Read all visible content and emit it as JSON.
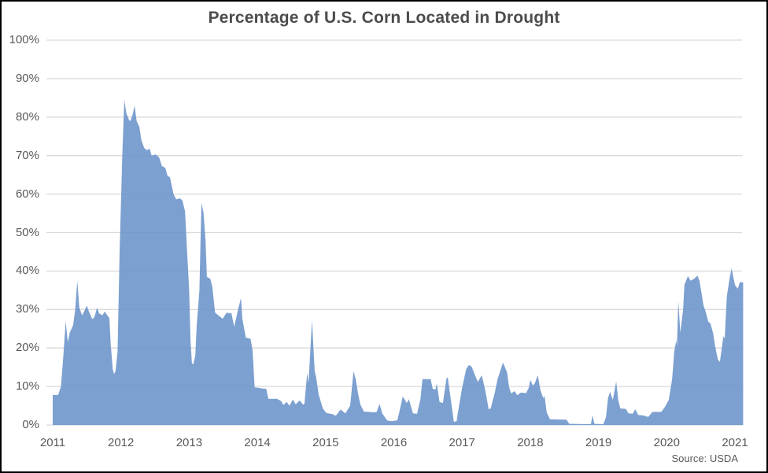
{
  "chart": {
    "title": "Percentage of U.S. Corn Located in Drought",
    "source": "Source: USDA",
    "y_ticks": [
      "0%",
      "10%",
      "20%",
      "30%",
      "40%",
      "50%",
      "60%",
      "70%",
      "80%",
      "90%",
      "100%"
    ],
    "x_ticks": [
      "2011",
      "2012",
      "2013",
      "2014",
      "2015",
      "2016",
      "2017",
      "2018",
      "2019",
      "2020",
      "2021"
    ],
    "colors": {
      "area_fill": "#6A93C9",
      "area_blended": "#7CA0D2",
      "gridline": "#D9D9D9",
      "axis_text": "#595959",
      "title_text": "#4C4C4C",
      "frame_border": "#000000",
      "background": "#FFFFFF"
    }
  },
  "chart_data": {
    "type": "area",
    "title": "Percentage of U.S. Corn Located in Drought",
    "xlabel": "",
    "ylabel": "",
    "series_name": "Percent of U.S. corn located in drought",
    "x_range": [
      2011,
      2021.12
    ],
    "ylim": [
      0,
      100
    ],
    "y_tick_step": 10,
    "grid": true,
    "legend": false,
    "source": "Source: USDA",
    "points": [
      [
        2011.0,
        7.8
      ],
      [
        2011.08,
        7.8
      ],
      [
        2011.12,
        10
      ],
      [
        2011.15,
        16.5
      ],
      [
        2011.19,
        27
      ],
      [
        2011.22,
        21.5
      ],
      [
        2011.25,
        24
      ],
      [
        2011.3,
        26
      ],
      [
        2011.33,
        30
      ],
      [
        2011.36,
        37.5
      ],
      [
        2011.39,
        30.5
      ],
      [
        2011.43,
        28.5
      ],
      [
        2011.46,
        29.5
      ],
      [
        2011.5,
        31
      ],
      [
        2011.53,
        29.5
      ],
      [
        2011.58,
        27.5
      ],
      [
        2011.61,
        28
      ],
      [
        2011.65,
        30.5
      ],
      [
        2011.68,
        29
      ],
      [
        2011.73,
        28.5
      ],
      [
        2011.76,
        29.5
      ],
      [
        2011.8,
        28.5
      ],
      [
        2011.83,
        27.8
      ],
      [
        2011.85,
        21
      ],
      [
        2011.88,
        14.5
      ],
      [
        2011.9,
        13.2
      ],
      [
        2011.92,
        14
      ],
      [
        2011.95,
        19
      ],
      [
        2011.98,
        45
      ],
      [
        2012.02,
        70
      ],
      [
        2012.05,
        84.5
      ],
      [
        2012.08,
        81
      ],
      [
        2012.12,
        79.2
      ],
      [
        2012.14,
        79
      ],
      [
        2012.17,
        80.5
      ],
      [
        2012.2,
        83
      ],
      [
        2012.23,
        79
      ],
      [
        2012.27,
        77.5
      ],
      [
        2012.3,
        74
      ],
      [
        2012.34,
        72
      ],
      [
        2012.38,
        71.4
      ],
      [
        2012.42,
        71.8
      ],
      [
        2012.45,
        70
      ],
      [
        2012.51,
        70.3
      ],
      [
        2012.56,
        69.5
      ],
      [
        2012.6,
        67.3
      ],
      [
        2012.65,
        66.8
      ],
      [
        2012.68,
        64.8
      ],
      [
        2012.72,
        64.3
      ],
      [
        2012.77,
        60
      ],
      [
        2012.81,
        58.6
      ],
      [
        2012.86,
        58.9
      ],
      [
        2012.9,
        58.4
      ],
      [
        2012.94,
        55.5
      ],
      [
        2012.97,
        45
      ],
      [
        2013.0,
        35
      ],
      [
        2013.02,
        22
      ],
      [
        2013.04,
        16
      ],
      [
        2013.06,
        15.8
      ],
      [
        2013.09,
        18
      ],
      [
        2013.11,
        25.5
      ],
      [
        2013.15,
        35
      ],
      [
        2013.18,
        57.7
      ],
      [
        2013.21,
        55.2
      ],
      [
        2013.24,
        48
      ],
      [
        2013.26,
        38.5
      ],
      [
        2013.31,
        38
      ],
      [
        2013.34,
        35.8
      ],
      [
        2013.38,
        29.2
      ],
      [
        2013.42,
        28.6
      ],
      [
        2013.49,
        27.6
      ],
      [
        2013.55,
        29.2
      ],
      [
        2013.62,
        29
      ],
      [
        2013.66,
        25.5
      ],
      [
        2013.72,
        30.2
      ],
      [
        2013.76,
        33
      ],
      [
        2013.78,
        27.6
      ],
      [
        2013.83,
        22.7
      ],
      [
        2013.9,
        22.4
      ],
      [
        2013.93,
        19.4
      ],
      [
        2013.96,
        9.8
      ],
      [
        2014.06,
        9.5
      ],
      [
        2014.13,
        9.4
      ],
      [
        2014.16,
        6.8
      ],
      [
        2014.29,
        6.8
      ],
      [
        2014.35,
        6.2
      ],
      [
        2014.38,
        5.2
      ],
      [
        2014.43,
        6.0
      ],
      [
        2014.47,
        5.0
      ],
      [
        2014.52,
        6.6
      ],
      [
        2014.56,
        5.4
      ],
      [
        2014.62,
        6.4
      ],
      [
        2014.67,
        5.3
      ],
      [
        2014.69,
        5.5
      ],
      [
        2014.73,
        13.5
      ],
      [
        2014.75,
        11
      ],
      [
        2014.8,
        27.2
      ],
      [
        2014.84,
        14
      ],
      [
        2014.86,
        12.5
      ],
      [
        2014.9,
        7.8
      ],
      [
        2014.96,
        4.3
      ],
      [
        2015.01,
        3.1
      ],
      [
        2015.1,
        2.8
      ],
      [
        2015.15,
        2.4
      ],
      [
        2015.22,
        4.0
      ],
      [
        2015.29,
        3.0
      ],
      [
        2015.36,
        5.0
      ],
      [
        2015.41,
        14
      ],
      [
        2015.44,
        12
      ],
      [
        2015.48,
        7.8
      ],
      [
        2015.51,
        5.3
      ],
      [
        2015.56,
        3.5
      ],
      [
        2015.71,
        3.3
      ],
      [
        2015.75,
        3.4
      ],
      [
        2015.79,
        5.5
      ],
      [
        2015.83,
        3.0
      ],
      [
        2015.9,
        1.2
      ],
      [
        2015.96,
        1.0
      ],
      [
        2016.05,
        1.2
      ],
      [
        2016.08,
        3.3
      ],
      [
        2016.13,
        7.4
      ],
      [
        2016.19,
        5.7
      ],
      [
        2016.22,
        6.7
      ],
      [
        2016.28,
        3.0
      ],
      [
        2016.34,
        2.9
      ],
      [
        2016.39,
        6.7
      ],
      [
        2016.42,
        11.9
      ],
      [
        2016.54,
        11.9
      ],
      [
        2016.57,
        9.4
      ],
      [
        2016.61,
        9.2
      ],
      [
        2016.63,
        10.8
      ],
      [
        2016.67,
        6.0
      ],
      [
        2016.72,
        5.7
      ],
      [
        2016.77,
        12.0
      ],
      [
        2016.79,
        12.4
      ],
      [
        2016.85,
        4.7
      ],
      [
        2016.88,
        0.8
      ],
      [
        2016.92,
        1.0
      ],
      [
        2016.94,
        3.3
      ],
      [
        2017.0,
        9.6
      ],
      [
        2017.06,
        14.5
      ],
      [
        2017.1,
        15.6
      ],
      [
        2017.14,
        15.2
      ],
      [
        2017.23,
        11.2
      ],
      [
        2017.29,
        12.9
      ],
      [
        2017.34,
        9.0
      ],
      [
        2017.39,
        4.1
      ],
      [
        2017.42,
        4.3
      ],
      [
        2017.48,
        8.4
      ],
      [
        2017.52,
        11.9
      ],
      [
        2017.6,
        16.2
      ],
      [
        2017.66,
        13.7
      ],
      [
        2017.69,
        9.8
      ],
      [
        2017.72,
        8.2
      ],
      [
        2017.77,
        8.8
      ],
      [
        2017.81,
        7.7
      ],
      [
        2017.86,
        8.4
      ],
      [
        2017.94,
        8.3
      ],
      [
        2017.98,
        9.8
      ],
      [
        2018.0,
        11.7
      ],
      [
        2018.04,
        10.2
      ],
      [
        2018.07,
        11.0
      ],
      [
        2018.11,
        12.9
      ],
      [
        2018.15,
        9.0
      ],
      [
        2018.19,
        7.0
      ],
      [
        2018.21,
        7.5
      ],
      [
        2018.24,
        3.3
      ],
      [
        2018.29,
        1.5
      ],
      [
        2018.53,
        1.4
      ],
      [
        2018.57,
        0.3
      ],
      [
        2018.86,
        0.2
      ],
      [
        2018.89,
        0.3
      ],
      [
        2018.91,
        2.5
      ],
      [
        2018.94,
        0.3
      ],
      [
        2019.07,
        0.2
      ],
      [
        2019.11,
        2.0
      ],
      [
        2019.14,
        7.0
      ],
      [
        2019.17,
        8.6
      ],
      [
        2019.21,
        6.5
      ],
      [
        2019.26,
        11.3
      ],
      [
        2019.29,
        6.5
      ],
      [
        2019.32,
        4.3
      ],
      [
        2019.4,
        4.2
      ],
      [
        2019.44,
        3.0
      ],
      [
        2019.5,
        2.9
      ],
      [
        2019.54,
        4.1
      ],
      [
        2019.58,
        2.6
      ],
      [
        2019.65,
        2.5
      ],
      [
        2019.73,
        2.1
      ],
      [
        2019.79,
        3.4
      ],
      [
        2019.92,
        3.4
      ],
      [
        2019.97,
        4.6
      ],
      [
        2020.03,
        6.5
      ],
      [
        2020.08,
        12.0
      ],
      [
        2020.11,
        19.0
      ],
      [
        2020.14,
        22.0
      ],
      [
        2020.15,
        20.5
      ],
      [
        2020.17,
        32.3
      ],
      [
        2020.2,
        24.0
      ],
      [
        2020.24,
        30.0
      ],
      [
        2020.26,
        36.4
      ],
      [
        2020.31,
        38.7
      ],
      [
        2020.35,
        37.5
      ],
      [
        2020.4,
        38.0
      ],
      [
        2020.45,
        38.8
      ],
      [
        2020.48,
        37.5
      ],
      [
        2020.54,
        31.0
      ],
      [
        2020.57,
        29.5
      ],
      [
        2020.61,
        26.8
      ],
      [
        2020.64,
        26.4
      ],
      [
        2020.68,
        23.8
      ],
      [
        2020.71,
        20.4
      ],
      [
        2020.75,
        17.0
      ],
      [
        2020.78,
        16.4
      ],
      [
        2020.83,
        23.1
      ],
      [
        2020.85,
        22.4
      ],
      [
        2020.88,
        33.3
      ],
      [
        2020.92,
        38.0
      ],
      [
        2020.95,
        40.7
      ],
      [
        2021.0,
        36.4
      ],
      [
        2021.04,
        35.4
      ],
      [
        2021.07,
        37.0
      ],
      [
        2021.09,
        37.2
      ],
      [
        2021.12,
        37.0
      ]
    ]
  }
}
